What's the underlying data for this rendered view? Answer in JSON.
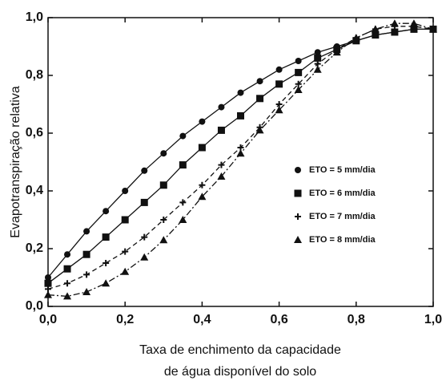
{
  "chart_data": {
    "type": "line",
    "ylabel": "Evapotranspiração relativa",
    "xlabel": [
      "Taxa de enchimento da capacidade",
      "de água disponível do solo"
    ],
    "x": [
      0,
      0.05,
      0.1,
      0.15,
      0.2,
      0.25,
      0.3,
      0.35,
      0.4,
      0.45,
      0.5,
      0.55,
      0.6,
      0.65,
      0.7,
      0.75,
      0.8,
      0.85,
      0.9,
      0.95,
      1.0
    ],
    "series": [
      {
        "name": "ETO = 5 mm/dia",
        "color": "#111111",
        "marker": "circle",
        "dash": "solid",
        "values": [
          0.1,
          0.18,
          0.26,
          0.33,
          0.4,
          0.47,
          0.53,
          0.59,
          0.64,
          0.69,
          0.74,
          0.78,
          0.82,
          0.85,
          0.88,
          0.9,
          0.92,
          0.94,
          0.95,
          0.96,
          0.96
        ]
      },
      {
        "name": "ETO = 6 mm/dia",
        "color": "#111111",
        "marker": "square",
        "dash": "solid",
        "values": [
          0.08,
          0.13,
          0.18,
          0.24,
          0.3,
          0.36,
          0.42,
          0.49,
          0.55,
          0.61,
          0.66,
          0.72,
          0.77,
          0.81,
          0.86,
          0.89,
          0.92,
          0.94,
          0.95,
          0.96,
          0.96
        ]
      },
      {
        "name": "ETO = 7 mm/dia",
        "color": "#111111",
        "marker": "plus",
        "dash": "dashed",
        "values": [
          0.06,
          0.08,
          0.11,
          0.15,
          0.19,
          0.24,
          0.3,
          0.36,
          0.42,
          0.49,
          0.55,
          0.62,
          0.7,
          0.77,
          0.84,
          0.89,
          0.93,
          0.96,
          0.97,
          0.97,
          0.96
        ]
      },
      {
        "name": "ETO = 8 mm/dia",
        "color": "#111111",
        "marker": "triangle",
        "dash": "dashdot",
        "values": [
          0.04,
          0.035,
          0.05,
          0.08,
          0.12,
          0.17,
          0.23,
          0.3,
          0.38,
          0.45,
          0.53,
          0.61,
          0.68,
          0.75,
          0.82,
          0.88,
          0.93,
          0.96,
          0.98,
          0.98,
          0.96
        ]
      }
    ],
    "xlim": [
      0,
      1
    ],
    "ylim": [
      0,
      1
    ],
    "xticks": [
      {
        "value": 0,
        "label": "0,0"
      },
      {
        "value": 0.2,
        "label": "0,2"
      },
      {
        "value": 0.4,
        "label": "0,4"
      },
      {
        "value": 0.6,
        "label": "0,6"
      },
      {
        "value": 0.8,
        "label": "0,8"
      },
      {
        "value": 1,
        "label": "1,0"
      }
    ],
    "yticks": [
      {
        "value": 0,
        "label": "0,0"
      },
      {
        "value": 0.2,
        "label": "0,2"
      },
      {
        "value": 0.4,
        "label": "0,4"
      },
      {
        "value": 0.6,
        "label": "0,6"
      },
      {
        "value": 0.8,
        "label": "0,8"
      },
      {
        "value": 1,
        "label": "1,0"
      }
    ],
    "legend": "right",
    "grid": false
  }
}
